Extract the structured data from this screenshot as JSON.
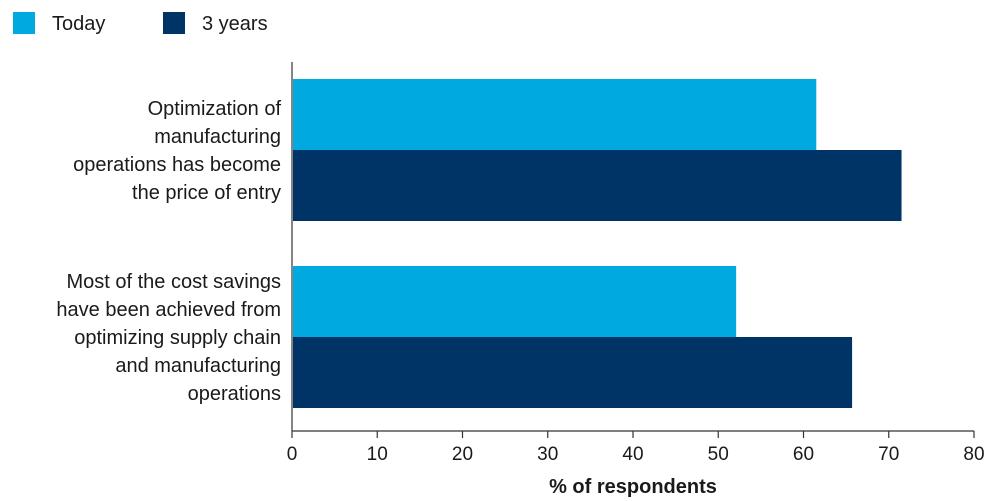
{
  "chart_data": {
    "type": "bar",
    "orientation": "horizontal",
    "categories": [
      [
        "Optimization of",
        "manufacturing",
        "operations has become",
        "the price of entry"
      ],
      [
        "Most of the cost savings",
        "have been achieved from",
        "optimizing supply chain",
        "and manufacturing",
        "operations"
      ]
    ],
    "series": [
      {
        "name": "Today",
        "color": "#00a9e0",
        "values": [
          61.5,
          52.1
        ]
      },
      {
        "name": "3 years",
        "color": "#003366",
        "values": [
          71.5,
          65.7
        ]
      }
    ],
    "xlabel": "% of respondents",
    "xlim": [
      0,
      80
    ],
    "xticks": [
      0,
      10,
      20,
      30,
      40,
      50,
      60,
      70,
      80
    ],
    "grid": false,
    "legend_position": "top-left"
  }
}
